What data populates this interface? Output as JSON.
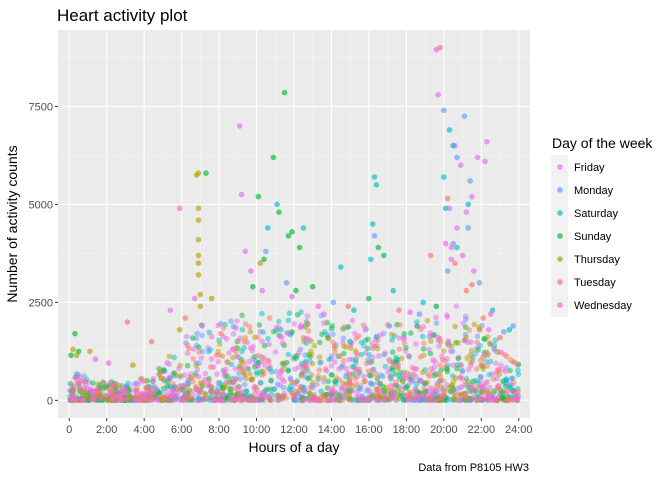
{
  "chart_data": {
    "type": "scatter",
    "title": "Heart activity plot",
    "xlabel": "Hours of a day",
    "ylabel": "Number of activity counts",
    "caption": "Data from P8105 HW3",
    "xlim": [
      -0.6,
      24.6
    ],
    "ylim": [
      -450,
      9450
    ],
    "x_ticks": [
      0,
      2,
      4,
      6,
      8,
      10,
      12,
      14,
      16,
      18,
      20,
      22,
      24
    ],
    "x_tick_labels": [
      "0",
      "2:00",
      "4:00",
      "6:00",
      "8:00",
      "10:00",
      "12:00",
      "14:00",
      "16:00",
      "18:00",
      "20:00",
      "22:00",
      "24:00"
    ],
    "y_ticks": [
      0,
      2500,
      5000,
      7500
    ],
    "y_tick_labels": [
      "0",
      "2500",
      "5000",
      "7500"
    ],
    "grid": true,
    "point_alpha": 0.5,
    "legend": {
      "title": "Day of the week",
      "position": "right"
    },
    "series": [
      {
        "name": "Friday",
        "color": "#E76BF3",
        "points": [
          [
            9.1,
            7000
          ],
          [
            9.2,
            5250
          ],
          [
            20.6,
            6500
          ],
          [
            20.9,
            6000
          ],
          [
            21.5,
            5200
          ],
          [
            21.8,
            6200
          ],
          [
            22.3,
            6600
          ],
          [
            22.2,
            6100
          ],
          [
            20.3,
            4900
          ],
          [
            21.2,
            4800
          ],
          [
            20.7,
            4400
          ],
          [
            9.4,
            3800
          ],
          [
            10.3,
            2800
          ],
          [
            21.6,
            3300
          ],
          [
            20.4,
            3600
          ],
          [
            8.9,
            1850
          ],
          [
            6.7,
            2600
          ],
          [
            5.4,
            2300
          ],
          [
            11.9,
            2650
          ],
          [
            13.6,
            2200
          ],
          [
            7.1,
            1900
          ],
          [
            22.4,
            1800
          ]
        ]
      },
      {
        "name": "Monday",
        "color": "#619CFF",
        "points": [
          [
            20.0,
            7400
          ],
          [
            21.1,
            7250
          ],
          [
            20.7,
            6200
          ],
          [
            21.4,
            5600
          ],
          [
            20.5,
            4000
          ],
          [
            21.3,
            4400
          ],
          [
            20.2,
            3300
          ],
          [
            21.9,
            3000
          ],
          [
            10.5,
            3800
          ],
          [
            16.3,
            4200
          ],
          [
            11.6,
            3000
          ],
          [
            14.1,
            2500
          ],
          [
            18.7,
            2200
          ],
          [
            17.1,
            1900
          ],
          [
            23.2,
            1750
          ],
          [
            23.7,
            1900
          ]
        ]
      },
      {
        "name": "Saturday",
        "color": "#00BFC4",
        "points": [
          [
            20.3,
            6900
          ],
          [
            20.5,
            6500
          ],
          [
            20.0,
            5700
          ],
          [
            16.3,
            5700
          ],
          [
            16.4,
            5500
          ],
          [
            11.1,
            5000
          ],
          [
            20.1,
            4900
          ],
          [
            21.3,
            5000
          ],
          [
            16.2,
            4500
          ],
          [
            14.5,
            3400
          ],
          [
            12.5,
            4400
          ],
          [
            10.6,
            4400
          ],
          [
            16.1,
            3600
          ],
          [
            20.7,
            3900
          ],
          [
            18.9,
            2500
          ],
          [
            22.6,
            2300
          ],
          [
            23.5,
            1800
          ],
          [
            15.2,
            2300
          ],
          [
            17.3,
            2800
          ]
        ]
      },
      {
        "name": "Sunday",
        "color": "#00BA38",
        "points": [
          [
            11.5,
            7850
          ],
          [
            10.9,
            6200
          ],
          [
            12.3,
            3900
          ],
          [
            10.1,
            5200
          ],
          [
            11.2,
            4800
          ],
          [
            11.7,
            4200
          ],
          [
            11.9,
            4300
          ],
          [
            10.4,
            3600
          ],
          [
            16.5,
            3900
          ],
          [
            16.8,
            3700
          ],
          [
            7.3,
            5800
          ],
          [
            12.1,
            2800
          ],
          [
            13.0,
            2900
          ],
          [
            16.0,
            2600
          ],
          [
            9.8,
            2900
          ],
          [
            19.6,
            2400
          ],
          [
            0.3,
            1700
          ],
          [
            0.5,
            1250
          ],
          [
            0.1,
            1150
          ]
        ]
      },
      {
        "name": "Thursday",
        "color": "#B79F00",
        "points": [
          [
            6.9,
            5800
          ],
          [
            6.8,
            5750
          ],
          [
            6.9,
            4900
          ],
          [
            6.9,
            4600
          ],
          [
            6.9,
            4100
          ],
          [
            6.9,
            3700
          ],
          [
            6.9,
            3500
          ],
          [
            6.9,
            3200
          ],
          [
            7.0,
            2700
          ],
          [
            7.0,
            2400
          ],
          [
            7.6,
            2600
          ],
          [
            10.2,
            3500
          ],
          [
            0.2,
            1300
          ],
          [
            0.4,
            1150
          ],
          [
            1.1,
            1250
          ],
          [
            3.4,
            900
          ],
          [
            5.9,
            1800
          ]
        ]
      },
      {
        "name": "Tuesday",
        "color": "#F8766D",
        "points": [
          [
            19.8,
            9000
          ],
          [
            20.2,
            5150
          ],
          [
            19.3,
            3700
          ],
          [
            20.6,
            3500
          ],
          [
            21.2,
            2800
          ],
          [
            21.5,
            2950
          ],
          [
            3.1,
            2000
          ],
          [
            4.4,
            1500
          ],
          [
            6.2,
            2100
          ],
          [
            14.9,
            2400
          ],
          [
            17.6,
            2300
          ],
          [
            22.1,
            2100
          ],
          [
            23.0,
            1600
          ],
          [
            8.1,
            1700
          ],
          [
            12.7,
            1950
          ]
        ]
      },
      {
        "name": "Wednesday",
        "color": "#F564E3",
        "points": [
          [
            19.6,
            8950
          ],
          [
            19.7,
            7800
          ],
          [
            20.1,
            4000
          ],
          [
            20.4,
            3900
          ],
          [
            21.0,
            3700
          ],
          [
            5.9,
            4900
          ],
          [
            9.7,
            3300
          ],
          [
            13.3,
            2400
          ],
          [
            22.5,
            2200
          ],
          [
            18.2,
            2250
          ],
          [
            2.1,
            950
          ],
          [
            1.4,
            1050
          ]
        ]
      }
    ],
    "density_profile": {
      "hours": [
        0,
        1,
        2,
        3,
        4,
        5,
        6,
        7,
        8,
        9,
        10,
        11,
        12,
        13,
        14,
        15,
        16,
        17,
        18,
        19,
        20,
        21,
        22,
        23,
        24
      ],
      "typical_upper": [
        700,
        550,
        450,
        420,
        500,
        800,
        1400,
        1800,
        1900,
        1950,
        1950,
        2000,
        1950,
        1900,
        1900,
        1850,
        1900,
        1900,
        1900,
        1850,
        2000,
        2100,
        1800,
        1400,
        1000
      ]
    }
  }
}
